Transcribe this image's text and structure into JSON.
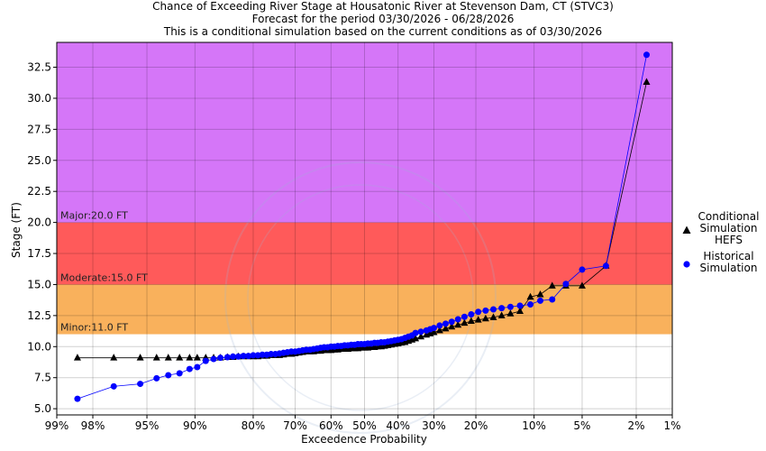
{
  "chart_data": {
    "type": "scatter",
    "title": "Chance of Exceeding River Stage at Housatonic River at Stevenson Dam, CT (STVC3)",
    "subtitle_lines": [
      "Forecast for the period 03/30/2026 - 06/28/2026",
      "This is a conditional simulation based on the current conditions as of 03/30/2026"
    ],
    "xlabel": "Exceedence Probability",
    "ylabel": "Stage (FT)",
    "x_scale": "normal-probability (reversed)",
    "x_ticks": [
      {
        "p": 99,
        "label": "99%"
      },
      {
        "p": 98,
        "label": "98%"
      },
      {
        "p": 95,
        "label": "95%"
      },
      {
        "p": 90,
        "label": "90%"
      },
      {
        "p": 80,
        "label": "80%"
      },
      {
        "p": 70,
        "label": "70%"
      },
      {
        "p": 60,
        "label": "60%"
      },
      {
        "p": 50,
        "label": "50%"
      },
      {
        "p": 40,
        "label": "40%"
      },
      {
        "p": 30,
        "label": "30%"
      },
      {
        "p": 20,
        "label": "20%"
      },
      {
        "p": 10,
        "label": "10%"
      },
      {
        "p": 5,
        "label": "5%"
      },
      {
        "p": 2,
        "label": "2%"
      },
      {
        "p": 1,
        "label": "1%"
      }
    ],
    "y_ticks": [
      "5.0",
      "7.5",
      "10.0",
      "12.5",
      "15.0",
      "17.5",
      "20.0",
      "22.5",
      "25.0",
      "27.5",
      "30.0",
      "32.5"
    ],
    "ylim": [
      4.5,
      34.5
    ],
    "grid": true,
    "legend_position": "right",
    "flood_categories": [
      {
        "name": "Minor",
        "label": "Minor:11.0 FT",
        "from": 11.0,
        "to": 15.0,
        "color": "#f9b15c"
      },
      {
        "name": "Moderate",
        "label": "Moderate:15.0 FT",
        "from": 15.0,
        "to": 20.0,
        "color": "#ff5a5a"
      },
      {
        "name": "Major",
        "label": "Major:20.0 FT",
        "from": 20.0,
        "to": 34.5,
        "color": "#d576f8"
      }
    ],
    "series": [
      {
        "name": "Conditional Simulation HEFS",
        "legend_lines": [
          "Conditional",
          "Simulation",
          "HEFS"
        ],
        "marker": "triangle",
        "color": "#000000",
        "points": [
          [
            98.5,
            9.1
          ],
          [
            97.1,
            9.1
          ],
          [
            95.5,
            9.1
          ],
          [
            94.2,
            9.1
          ],
          [
            93.1,
            9.1
          ],
          [
            91.9,
            9.1
          ],
          [
            90.7,
            9.1
          ],
          [
            89.7,
            9.1
          ],
          [
            88.5,
            9.1
          ],
          [
            87.3,
            9.1
          ],
          [
            86.2,
            9.1
          ],
          [
            85.0,
            9.15
          ],
          [
            84.0,
            9.15
          ],
          [
            83.0,
            9.2
          ],
          [
            82.0,
            9.2
          ],
          [
            81.0,
            9.2
          ],
          [
            80.0,
            9.2
          ],
          [
            79.0,
            9.2
          ],
          [
            78.0,
            9.25
          ],
          [
            77.0,
            9.25
          ],
          [
            76.0,
            9.3
          ],
          [
            75.0,
            9.3
          ],
          [
            74.0,
            9.3
          ],
          [
            73.0,
            9.35
          ],
          [
            72.0,
            9.4
          ],
          [
            71.0,
            9.4
          ],
          [
            70.0,
            9.45
          ],
          [
            69.0,
            9.5
          ],
          [
            68.0,
            9.55
          ],
          [
            67.0,
            9.6
          ],
          [
            66.0,
            9.6
          ],
          [
            65.0,
            9.6
          ],
          [
            64.0,
            9.65
          ],
          [
            63.0,
            9.65
          ],
          [
            62.0,
            9.7
          ],
          [
            61.0,
            9.7
          ],
          [
            60.0,
            9.7
          ],
          [
            59.0,
            9.75
          ],
          [
            58.0,
            9.75
          ],
          [
            57.0,
            9.8
          ],
          [
            56.0,
            9.8
          ],
          [
            55.0,
            9.8
          ],
          [
            54.0,
            9.85
          ],
          [
            53.0,
            9.85
          ],
          [
            52.0,
            9.85
          ],
          [
            51.0,
            9.9
          ],
          [
            50.0,
            9.9
          ],
          [
            49.0,
            9.9
          ],
          [
            48.0,
            9.95
          ],
          [
            47.0,
            9.95
          ],
          [
            46.0,
            10.0
          ],
          [
            45.0,
            10.0
          ],
          [
            44.0,
            10.05
          ],
          [
            43.0,
            10.1
          ],
          [
            42.0,
            10.15
          ],
          [
            41.0,
            10.2
          ],
          [
            40.0,
            10.25
          ],
          [
            39.0,
            10.3
          ],
          [
            38.0,
            10.35
          ],
          [
            37.0,
            10.45
          ],
          [
            36.0,
            10.55
          ],
          [
            35.0,
            10.65
          ],
          [
            33.5,
            10.8
          ],
          [
            32.0,
            10.95
          ],
          [
            31.0,
            11.05
          ],
          [
            30.0,
            11.15
          ],
          [
            28.5,
            11.3
          ],
          [
            27.0,
            11.45
          ],
          [
            25.5,
            11.6
          ],
          [
            24.0,
            11.75
          ],
          [
            22.5,
            11.9
          ],
          [
            21.0,
            12.05
          ],
          [
            19.5,
            12.15
          ],
          [
            18.0,
            12.25
          ],
          [
            16.5,
            12.35
          ],
          [
            15.0,
            12.5
          ],
          [
            13.5,
            12.65
          ],
          [
            12.0,
            12.85
          ],
          [
            10.5,
            14.0
          ],
          [
            9.2,
            14.2
          ],
          [
            7.8,
            14.9
          ],
          [
            6.4,
            14.9
          ],
          [
            5.0,
            14.9
          ],
          [
            3.4,
            16.5
          ],
          [
            1.65,
            31.3
          ]
        ]
      },
      {
        "name": "Historical Simulation",
        "legend_lines": [
          "Historical",
          "Simulation"
        ],
        "marker": "circle",
        "color": "#0000ff",
        "points": [
          [
            98.5,
            5.8
          ],
          [
            97.1,
            6.8
          ],
          [
            95.5,
            7.0
          ],
          [
            94.2,
            7.45
          ],
          [
            93.1,
            7.7
          ],
          [
            91.9,
            7.85
          ],
          [
            90.7,
            8.2
          ],
          [
            89.7,
            8.35
          ],
          [
            88.5,
            8.85
          ],
          [
            87.3,
            9.0
          ],
          [
            86.2,
            9.1
          ],
          [
            85.0,
            9.15
          ],
          [
            84.0,
            9.2
          ],
          [
            83.0,
            9.2
          ],
          [
            82.0,
            9.25
          ],
          [
            81.0,
            9.25
          ],
          [
            80.0,
            9.3
          ],
          [
            79.0,
            9.3
          ],
          [
            78.0,
            9.35
          ],
          [
            77.0,
            9.35
          ],
          [
            76.0,
            9.4
          ],
          [
            75.0,
            9.4
          ],
          [
            74.0,
            9.45
          ],
          [
            73.0,
            9.5
          ],
          [
            72.0,
            9.55
          ],
          [
            71.0,
            9.6
          ],
          [
            70.0,
            9.6
          ],
          [
            69.0,
            9.65
          ],
          [
            68.0,
            9.7
          ],
          [
            67.0,
            9.75
          ],
          [
            66.0,
            9.75
          ],
          [
            65.0,
            9.8
          ],
          [
            64.0,
            9.85
          ],
          [
            63.0,
            9.9
          ],
          [
            62.0,
            9.95
          ],
          [
            61.0,
            9.95
          ],
          [
            60.0,
            10.0
          ],
          [
            59.0,
            10.0
          ],
          [
            58.0,
            10.05
          ],
          [
            57.0,
            10.05
          ],
          [
            56.0,
            10.1
          ],
          [
            55.0,
            10.1
          ],
          [
            54.0,
            10.15
          ],
          [
            53.0,
            10.15
          ],
          [
            52.0,
            10.2
          ],
          [
            51.0,
            10.2
          ],
          [
            50.0,
            10.2
          ],
          [
            49.0,
            10.25
          ],
          [
            48.0,
            10.25
          ],
          [
            47.0,
            10.3
          ],
          [
            46.0,
            10.3
          ],
          [
            45.0,
            10.35
          ],
          [
            44.0,
            10.35
          ],
          [
            43.0,
            10.4
          ],
          [
            42.0,
            10.45
          ],
          [
            41.0,
            10.5
          ],
          [
            40.0,
            10.55
          ],
          [
            39.0,
            10.6
          ],
          [
            38.0,
            10.7
          ],
          [
            37.0,
            10.8
          ],
          [
            36.0,
            10.9
          ],
          [
            35.0,
            11.1
          ],
          [
            33.5,
            11.2
          ],
          [
            32.0,
            11.3
          ],
          [
            31.0,
            11.4
          ],
          [
            30.0,
            11.5
          ],
          [
            28.5,
            11.7
          ],
          [
            27.0,
            11.85
          ],
          [
            25.5,
            12.0
          ],
          [
            24.0,
            12.2
          ],
          [
            22.5,
            12.4
          ],
          [
            21.0,
            12.6
          ],
          [
            19.5,
            12.8
          ],
          [
            18.0,
            12.9
          ],
          [
            16.5,
            13.0
          ],
          [
            15.0,
            13.1
          ],
          [
            13.5,
            13.2
          ],
          [
            12.0,
            13.3
          ],
          [
            10.5,
            13.4
          ],
          [
            9.2,
            13.7
          ],
          [
            7.8,
            13.8
          ],
          [
            6.4,
            15.05
          ],
          [
            5.0,
            16.2
          ],
          [
            3.4,
            16.5
          ],
          [
            1.65,
            33.5
          ]
        ]
      }
    ]
  }
}
